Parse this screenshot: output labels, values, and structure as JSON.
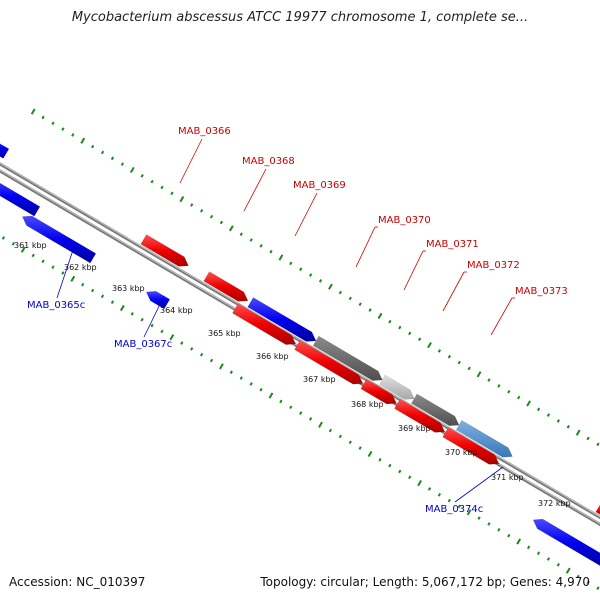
{
  "title": "Mycobacterium abscessus ATCC 19977 chromosome 1, complete se...",
  "footer": {
    "accession": "Accession: NC_010397",
    "topology": "Topology: circular; Length: 5,067,172 bp; Genes: 4,970"
  },
  "colors": {
    "forward_label": "#cc0000",
    "reverse_label": "#0000cc",
    "tick": "#1a8a1a",
    "backbone": "#888888"
  },
  "ticks": [
    "361 kbp",
    "362 kbp",
    "363 kbp",
    "364 kbp",
    "365 kbp",
    "366 kbp",
    "367 kbp",
    "368 kbp",
    "369 kbp",
    "370 kbp",
    "371 kbp",
    "372 kbp"
  ],
  "genes": {
    "forward": [
      "MAB_0366",
      "MAB_0368",
      "MAB_0369",
      "MAB_0370",
      "MAB_0371",
      "MAB_0372",
      "MAB_0373"
    ],
    "reverse": [
      "MAB_0365c",
      "MAB_0367c",
      "MAB_0374c"
    ]
  }
}
